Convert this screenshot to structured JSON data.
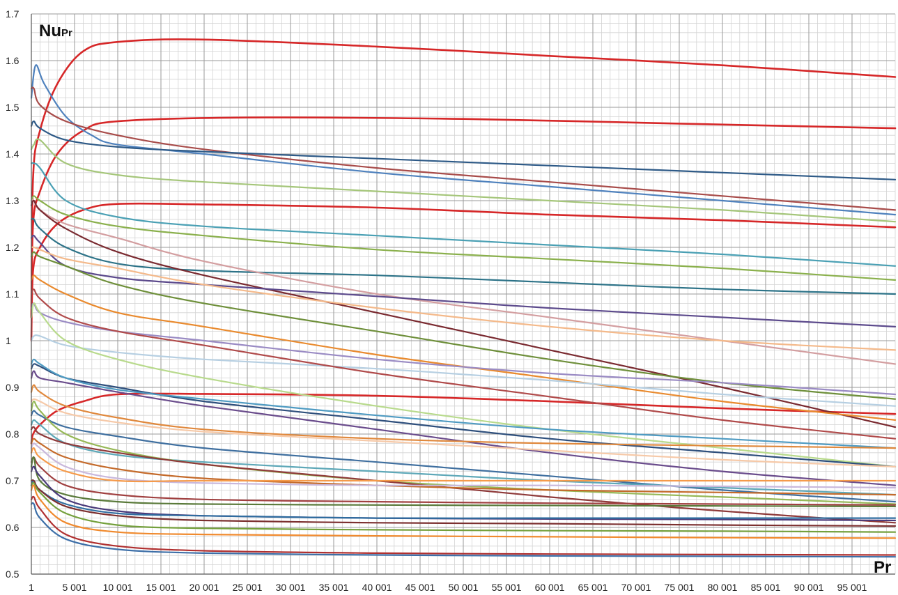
{
  "chart_data": {
    "type": "line",
    "ylabel_main": "Nu",
    "ylabel_sub": "Pr",
    "xlabel": "Pr",
    "xlim": [
      1,
      100001
    ],
    "ylim": [
      0.5,
      1.7
    ],
    "grid": true,
    "x_ticks": [
      1,
      5001,
      10001,
      15001,
      20001,
      25001,
      30001,
      35001,
      40001,
      45001,
      50001,
      55001,
      60001,
      65001,
      70001,
      75001,
      80001,
      85001,
      90001,
      95001
    ],
    "x_tick_labels": [
      "1",
      "5 001",
      "10 001",
      "15 001",
      "20 001",
      "25 001",
      "30 001",
      "35 001",
      "40 001",
      "45 001",
      "50 001",
      "55 001",
      "60 001",
      "65 001",
      "70 001",
      "75 001",
      "80 001",
      "85 001",
      "90 001",
      "95 001"
    ],
    "y_ticks": [
      0.5,
      0.6,
      0.7,
      0.8,
      0.9,
      1.0,
      1.1,
      1.2,
      1.3,
      1.4,
      1.5,
      1.6,
      1.7
    ],
    "y_tick_labels": [
      "0.5",
      "0.6",
      "0.7",
      "0.8",
      "0.9",
      "1",
      "1.1",
      "1.2",
      "1.3",
      "1.4",
      "1.5",
      "1.6",
      "1.7"
    ],
    "series": [
      {
        "color": "#d62728",
        "x": [
          1,
          200,
          1000,
          3000,
          6000,
          10001,
          20001,
          40001,
          60001,
          80001,
          100001
        ],
        "values": [
          1.05,
          1.35,
          1.45,
          1.55,
          1.62,
          1.64,
          1.645,
          1.63,
          1.61,
          1.59,
          1.565
        ]
      },
      {
        "color": "#d62728",
        "x": [
          1,
          200,
          1000,
          3000,
          6000,
          10001,
          25001,
          50001,
          75001,
          100001
        ],
        "values": [
          1.05,
          1.25,
          1.32,
          1.4,
          1.45,
          1.47,
          1.478,
          1.475,
          1.465,
          1.455
        ]
      },
      {
        "color": "#d62728",
        "x": [
          1,
          200,
          1000,
          3000,
          6000,
          10001,
          20001,
          40001,
          60001,
          80001,
          100001
        ],
        "values": [
          1.0,
          1.15,
          1.2,
          1.25,
          1.28,
          1.293,
          1.292,
          1.285,
          1.27,
          1.258,
          1.243
        ]
      },
      {
        "color": "#d62728",
        "x": [
          1,
          200,
          1000,
          3000,
          6000,
          10001,
          20001,
          40001,
          60001,
          80001,
          100001
        ],
        "values": [
          0.78,
          0.8,
          0.82,
          0.85,
          0.87,
          0.885,
          0.886,
          0.882,
          0.87,
          0.855,
          0.843
        ]
      },
      {
        "color": "#4e81bd",
        "x": [
          1,
          500,
          1500,
          4000,
          7000,
          10001,
          20001,
          40001,
          60001,
          80001,
          100001
        ],
        "values": [
          1.52,
          1.59,
          1.55,
          1.48,
          1.44,
          1.42,
          1.4,
          1.36,
          1.33,
          1.3,
          1.27
        ]
      },
      {
        "color": "#a84c4a",
        "x": [
          1,
          300,
          1000,
          4000,
          10001,
          20001,
          40001,
          60001,
          80001,
          100001
        ],
        "values": [
          1.54,
          1.54,
          1.505,
          1.47,
          1.44,
          1.41,
          1.37,
          1.34,
          1.31,
          1.28
        ]
      },
      {
        "color": "#2e5a87",
        "x": [
          1,
          300,
          1000,
          4000,
          10001,
          20001,
          40001,
          60001,
          80001,
          100001
        ],
        "values": [
          1.46,
          1.47,
          1.455,
          1.43,
          1.415,
          1.405,
          1.39,
          1.375,
          1.36,
          1.345
        ]
      },
      {
        "color": "#a5c67a",
        "x": [
          1,
          300,
          1000,
          4000,
          10001,
          20001,
          40001,
          60001,
          80001,
          100001
        ],
        "values": [
          1.41,
          1.42,
          1.43,
          1.38,
          1.355,
          1.34,
          1.32,
          1.3,
          1.28,
          1.255
        ]
      },
      {
        "color": "#4aa0b4",
        "x": [
          1,
          300,
          1000,
          4000,
          10001,
          20001,
          40001,
          60001,
          80001,
          100001
        ],
        "values": [
          1.38,
          1.38,
          1.37,
          1.3,
          1.265,
          1.245,
          1.225,
          1.205,
          1.185,
          1.16
        ]
      },
      {
        "color": "#8ab04c",
        "x": [
          1,
          300,
          1000,
          4000,
          10001,
          20001,
          40001,
          60001,
          80001,
          100001
        ],
        "values": [
          1.3,
          1.31,
          1.3,
          1.27,
          1.245,
          1.225,
          1.195,
          1.175,
          1.155,
          1.13
        ]
      },
      {
        "color": "#2d7388",
        "x": [
          1,
          300,
          1000,
          4000,
          10001,
          20001,
          40001,
          60001,
          80001,
          100001
        ],
        "values": [
          1.26,
          1.26,
          1.24,
          1.2,
          1.165,
          1.15,
          1.14,
          1.125,
          1.11,
          1.1
        ]
      },
      {
        "color": "#d39ea0",
        "x": [
          1,
          300,
          1000,
          4000,
          10001,
          20001,
          40001,
          60001,
          80001,
          100001
        ],
        "values": [
          1.3,
          1.3,
          1.28,
          1.25,
          1.22,
          1.17,
          1.1,
          1.05,
          1.0,
          0.95
        ]
      },
      {
        "color": "#7a2a30",
        "x": [
          1,
          300,
          1000,
          4000,
          10001,
          20001,
          40001,
          60001,
          80001,
          100001
        ],
        "values": [
          1.29,
          1.3,
          1.28,
          1.24,
          1.19,
          1.14,
          1.06,
          0.98,
          0.9,
          0.815
        ]
      },
      {
        "color": "#5c4a8c",
        "x": [
          1,
          300,
          1000,
          4000,
          10001,
          20001,
          40001,
          60001,
          80001,
          100001
        ],
        "values": [
          1.22,
          1.225,
          1.21,
          1.16,
          1.135,
          1.12,
          1.095,
          1.07,
          1.05,
          1.03
        ]
      },
      {
        "color": "#f4b98a",
        "x": [
          1,
          300,
          1000,
          4000,
          10001,
          20001,
          40001,
          60001,
          80001,
          100001
        ],
        "values": [
          1.2,
          1.2,
          1.195,
          1.175,
          1.155,
          1.12,
          1.07,
          1.03,
          1.0,
          0.98
        ]
      },
      {
        "color": "#6e8f3a",
        "x": [
          1,
          300,
          1000,
          4000,
          10001,
          20001,
          40001,
          60001,
          80001,
          100001
        ],
        "values": [
          1.18,
          1.19,
          1.18,
          1.16,
          1.12,
          1.08,
          1.02,
          0.96,
          0.91,
          0.875
        ]
      },
      {
        "color": "#e98a2e",
        "x": [
          1,
          300,
          1000,
          4000,
          10001,
          20001,
          40001,
          60001,
          80001,
          100001
        ],
        "values": [
          1.13,
          1.14,
          1.13,
          1.1,
          1.06,
          1.03,
          0.97,
          0.92,
          0.87,
          0.83
        ]
      },
      {
        "color": "#9a8bc4",
        "x": [
          1,
          300,
          1000,
          4000,
          10001,
          20001,
          40001,
          60001,
          80001,
          100001
        ],
        "values": [
          1.07,
          1.08,
          1.06,
          1.04,
          1.02,
          1.0,
          0.96,
          0.93,
          0.91,
          0.885
        ]
      },
      {
        "color": "#b6cfe2",
        "x": [
          1,
          300,
          1000,
          4000,
          10001,
          20001,
          40001,
          60001,
          80001,
          100001
        ],
        "values": [
          1.0,
          1.01,
          1.01,
          0.99,
          0.975,
          0.96,
          0.94,
          0.915,
          0.885,
          0.86
        ]
      },
      {
        "color": "#b8da8c",
        "x": [
          1,
          300,
          1000,
          4000,
          10001,
          20001,
          40001,
          60001,
          80001,
          100001
        ],
        "values": [
          1.05,
          1.08,
          1.06,
          1.0,
          0.96,
          0.92,
          0.86,
          0.81,
          0.77,
          0.73
        ]
      },
      {
        "color": "#b04a4a",
        "x": [
          1,
          300,
          1000,
          4000,
          10001,
          20001,
          40001,
          60001,
          80001,
          100001
        ],
        "values": [
          1.1,
          1.11,
          1.09,
          1.05,
          1.02,
          0.99,
          0.93,
          0.88,
          0.83,
          0.79
        ]
      },
      {
        "color": "#2e4f7c",
        "x": [
          1,
          300,
          1000,
          4000,
          10001,
          20001,
          40001,
          60001,
          80001,
          100001
        ],
        "values": [
          0.94,
          0.95,
          0.945,
          0.92,
          0.9,
          0.87,
          0.83,
          0.79,
          0.76,
          0.73
        ]
      },
      {
        "color": "#4f9bc2",
        "x": [
          1,
          300,
          1000,
          4000,
          10001,
          20001,
          40001,
          60001,
          80001,
          100001
        ],
        "values": [
          0.95,
          0.96,
          0.95,
          0.92,
          0.895,
          0.875,
          0.84,
          0.81,
          0.79,
          0.77
        ]
      },
      {
        "color": "#6a4c8c",
        "x": [
          1,
          300,
          1000,
          4000,
          10001,
          20001,
          40001,
          60001,
          80001,
          100001
        ],
        "values": [
          0.92,
          0.935,
          0.92,
          0.91,
          0.89,
          0.86,
          0.81,
          0.76,
          0.72,
          0.69
        ]
      },
      {
        "color": "#e0883c",
        "x": [
          1,
          300,
          1000,
          4000,
          10001,
          20001,
          40001,
          60001,
          80001,
          100001
        ],
        "values": [
          0.89,
          0.905,
          0.89,
          0.86,
          0.835,
          0.81,
          0.79,
          0.78,
          0.775,
          0.77
        ]
      },
      {
        "color": "#f6c9a8",
        "x": [
          1,
          300,
          1000,
          4000,
          10001,
          20001,
          40001,
          60001,
          80001,
          100001
        ],
        "values": [
          0.87,
          0.875,
          0.87,
          0.845,
          0.825,
          0.805,
          0.785,
          0.765,
          0.745,
          0.73
        ]
      },
      {
        "color": "#3f6f9f",
        "x": [
          1,
          300,
          1000,
          4000,
          10001,
          20001,
          40001,
          60001,
          80001,
          100001
        ],
        "values": [
          0.84,
          0.85,
          0.84,
          0.815,
          0.795,
          0.77,
          0.74,
          0.71,
          0.68,
          0.655
        ]
      },
      {
        "color": "#5ea8b8",
        "x": [
          1,
          300,
          1000,
          4000,
          10001,
          20001,
          40001,
          60001,
          80001,
          100001
        ],
        "values": [
          0.82,
          0.83,
          0.82,
          0.78,
          0.755,
          0.74,
          0.72,
          0.7,
          0.685,
          0.67
        ]
      },
      {
        "color": "#96b856",
        "x": [
          1,
          300,
          1000,
          4000,
          10001,
          20001,
          40001,
          60001,
          80001,
          100001
        ],
        "values": [
          0.85,
          0.87,
          0.85,
          0.8,
          0.765,
          0.735,
          0.7,
          0.68,
          0.665,
          0.65
        ]
      },
      {
        "color": "#8f3a3a",
        "x": [
          1,
          300,
          1000,
          4000,
          10001,
          20001,
          40001,
          60001,
          80001,
          100001
        ],
        "values": [
          0.81,
          0.815,
          0.8,
          0.78,
          0.76,
          0.735,
          0.7,
          0.665,
          0.635,
          0.61
        ]
      },
      {
        "color": "#c46a2a",
        "x": [
          1,
          300,
          1000,
          4000,
          10001,
          20001,
          40001,
          60001,
          80001,
          100001
        ],
        "values": [
          0.78,
          0.79,
          0.78,
          0.75,
          0.725,
          0.705,
          0.69,
          0.68,
          0.675,
          0.67
        ]
      },
      {
        "color": "#c9b8dc",
        "x": [
          1,
          300,
          1000,
          4000,
          10001,
          20001,
          40001,
          60001,
          80001,
          100001
        ],
        "values": [
          0.77,
          0.78,
          0.77,
          0.73,
          0.705,
          0.695,
          0.69,
          0.69,
          0.688,
          0.685
        ]
      },
      {
        "color": "#f59a4a",
        "x": [
          1,
          300,
          1000,
          4000,
          10001,
          20001,
          40001,
          60001,
          80001,
          100001
        ],
        "values": [
          0.76,
          0.77,
          0.75,
          0.72,
          0.7,
          0.7,
          0.7,
          0.7,
          0.7,
          0.7
        ]
      },
      {
        "color": "#a04040",
        "x": [
          1,
          300,
          1000,
          4000,
          10001,
          20001,
          40001,
          60001,
          80001,
          100001
        ],
        "values": [
          0.74,
          0.75,
          0.73,
          0.69,
          0.67,
          0.66,
          0.655,
          0.652,
          0.65,
          0.648
        ]
      },
      {
        "color": "#5a7a3a",
        "x": [
          1,
          300,
          1000,
          4000,
          10001,
          20001,
          40001,
          60001,
          80001,
          100001
        ],
        "values": [
          0.73,
          0.75,
          0.7,
          0.67,
          0.655,
          0.65,
          0.648,
          0.647,
          0.646,
          0.645
        ]
      },
      {
        "color": "#4a3a7a",
        "x": [
          1,
          300,
          1000,
          4000,
          10001,
          20001,
          40001,
          60001,
          80001,
          100001
        ],
        "values": [
          0.72,
          0.73,
          0.71,
          0.66,
          0.635,
          0.625,
          0.62,
          0.618,
          0.617,
          0.615
        ]
      },
      {
        "color": "#2f6da0",
        "x": [
          1,
          300,
          1000,
          4000,
          10001,
          20001,
          40001,
          60001,
          80001,
          100001
        ],
        "values": [
          0.69,
          0.7,
          0.68,
          0.65,
          0.63,
          0.625,
          0.62,
          0.62,
          0.62,
          0.62
        ]
      },
      {
        "color": "#7c3030",
        "x": [
          1,
          300,
          1000,
          4000,
          10001,
          20001,
          40001,
          60001,
          80001,
          100001
        ],
        "values": [
          0.7,
          0.7,
          0.68,
          0.645,
          0.625,
          0.615,
          0.61,
          0.608,
          0.605,
          0.603
        ]
      },
      {
        "color": "#74a03c",
        "x": [
          1,
          300,
          1000,
          4000,
          10001,
          20001,
          40001,
          60001,
          80001,
          100001
        ],
        "values": [
          0.69,
          0.695,
          0.675,
          0.63,
          0.605,
          0.598,
          0.595,
          0.593,
          0.592,
          0.59
        ]
      },
      {
        "color": "#f08a2e",
        "x": [
          1,
          300,
          1000,
          4000,
          10001,
          20001,
          40001,
          60001,
          80001,
          100001
        ],
        "values": [
          0.68,
          0.69,
          0.66,
          0.61,
          0.59,
          0.585,
          0.582,
          0.58,
          0.578,
          0.577
        ]
      },
      {
        "color": "#b03030",
        "x": [
          1,
          300,
          1000,
          4000,
          10001,
          20001,
          40001,
          60001,
          80001,
          100001
        ],
        "values": [
          0.66,
          0.665,
          0.64,
          0.585,
          0.56,
          0.55,
          0.545,
          0.543,
          0.542,
          0.541
        ]
      },
      {
        "color": "#3d6fa8",
        "x": [
          1,
          300,
          1000,
          4000,
          10001,
          20001,
          40001,
          60001,
          80001,
          100001
        ],
        "values": [
          0.65,
          0.65,
          0.62,
          0.575,
          0.553,
          0.545,
          0.541,
          0.539,
          0.538,
          0.537
        ]
      }
    ]
  }
}
